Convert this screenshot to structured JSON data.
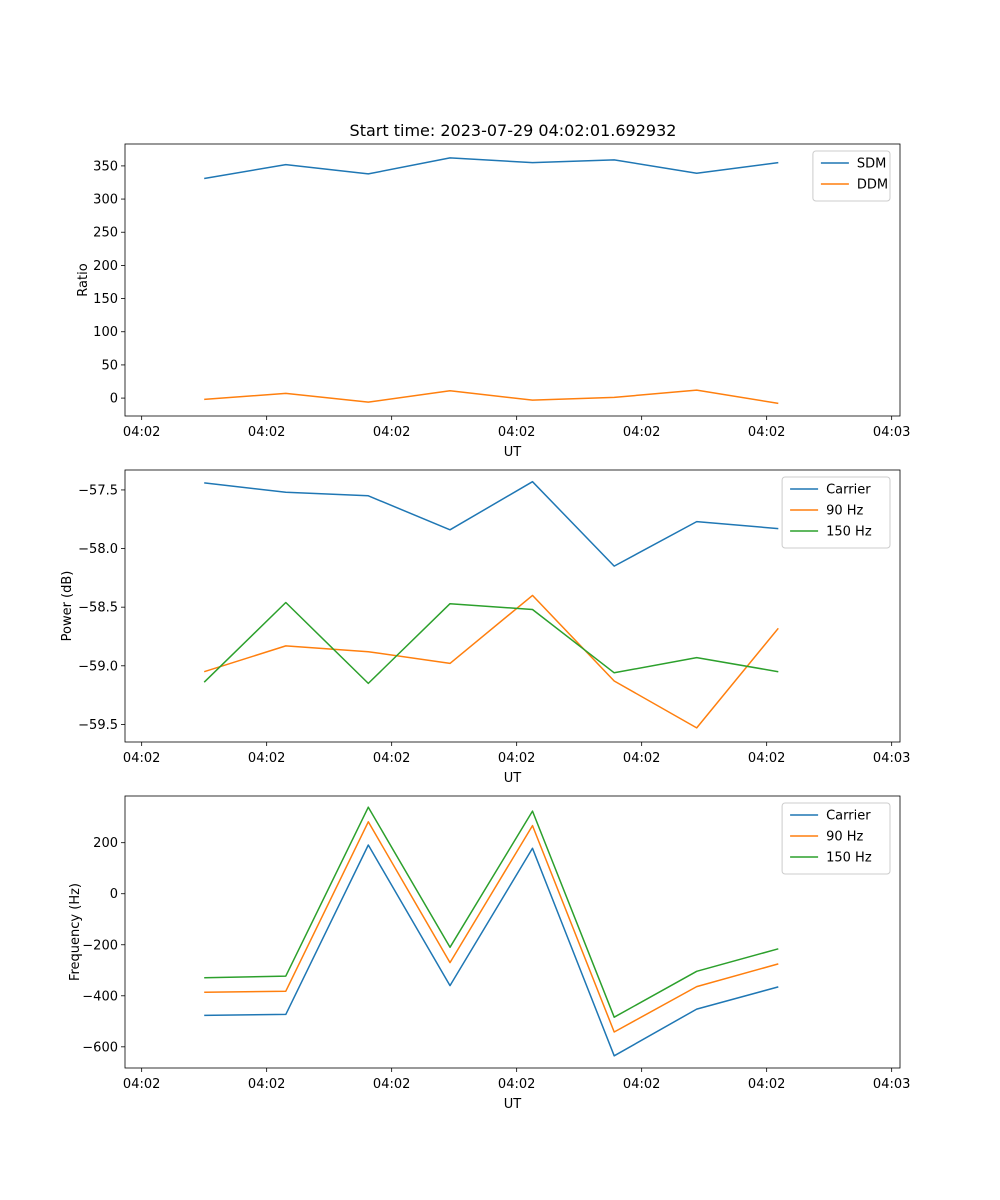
{
  "figure": {
    "title": "Start time: 2023-07-29 04:02:01.692932"
  },
  "colors": {
    "blue": "#1f77b4",
    "orange": "#ff7f0e",
    "green": "#2ca02c"
  },
  "chart_data": [
    {
      "type": "line",
      "title": "Start time: 2023-07-29 04:02:01.692932",
      "xlabel": "UT",
      "ylabel": "Ratio",
      "xlim": [
        -0.2,
        9.1
      ],
      "x_ticks": [
        0,
        1.5,
        3,
        4.5,
        6,
        7.5,
        9
      ],
      "x_tick_labels": [
        "04:02",
        "04:02",
        "04:02",
        "04:02",
        "04:02",
        "04:02",
        "04:03"
      ],
      "ylim": [
        -27,
        383
      ],
      "y_ticks": [
        0,
        50,
        100,
        150,
        200,
        250,
        300,
        350
      ],
      "y_tick_labels": [
        "0",
        "50",
        "100",
        "150",
        "200",
        "250",
        "300",
        "350"
      ],
      "legend": "top-right",
      "x": [
        0.75,
        1.73,
        2.72,
        3.7,
        4.69,
        5.67,
        6.66,
        7.64
      ],
      "series": [
        {
          "name": "SDM",
          "color": "#1f77b4",
          "values": [
            331,
            352,
            338,
            362,
            355,
            359,
            339,
            355
          ]
        },
        {
          "name": "DDM",
          "color": "#ff7f0e",
          "values": [
            -2,
            7,
            -6,
            11,
            -3,
            1,
            12,
            -8
          ]
        }
      ]
    },
    {
      "type": "line",
      "xlabel": "UT",
      "ylabel": "Power (dB)",
      "xlim": [
        -0.2,
        9.1
      ],
      "x_ticks": [
        0,
        1.5,
        3,
        4.5,
        6,
        7.5,
        9
      ],
      "x_tick_labels": [
        "04:02",
        "04:02",
        "04:02",
        "04:02",
        "04:02",
        "04:02",
        "04:03"
      ],
      "ylim": [
        -59.65,
        -57.33
      ],
      "y_ticks": [
        -59.5,
        -59.0,
        -58.5,
        -58.0,
        -57.5
      ],
      "y_tick_labels": [
        "−59.5",
        "−59.0",
        "−58.5",
        "−58.0",
        "−57.5"
      ],
      "legend": "top-right",
      "x": [
        0.75,
        1.73,
        2.72,
        3.7,
        4.69,
        5.67,
        6.66,
        7.64
      ],
      "series": [
        {
          "name": "Carrier",
          "color": "#1f77b4",
          "values": [
            -57.44,
            -57.52,
            -57.55,
            -57.84,
            -57.43,
            -58.15,
            -57.77,
            -57.83
          ]
        },
        {
          "name": "90 Hz",
          "color": "#ff7f0e",
          "values": [
            -59.05,
            -58.83,
            -58.88,
            -58.98,
            -58.4,
            -59.13,
            -59.53,
            -58.68
          ]
        },
        {
          "name": "150 Hz",
          "color": "#2ca02c",
          "values": [
            -59.14,
            -58.46,
            -59.15,
            -58.47,
            -58.52,
            -59.06,
            -58.93,
            -59.05
          ]
        }
      ]
    },
    {
      "type": "line",
      "xlabel": "UT",
      "ylabel": "Frequency (Hz)",
      "xlim": [
        -0.2,
        9.1
      ],
      "x_ticks": [
        0,
        1.5,
        3,
        4.5,
        6,
        7.5,
        9
      ],
      "x_tick_labels": [
        "04:02",
        "04:02",
        "04:02",
        "04:02",
        "04:02",
        "04:02",
        "04:03"
      ],
      "ylim": [
        -683,
        383
      ],
      "y_ticks": [
        -600,
        -400,
        -200,
        0,
        200
      ],
      "y_tick_labels": [
        "−600",
        "−400",
        "−200",
        "0",
        "200"
      ],
      "legend": "top-right",
      "x": [
        0.75,
        1.73,
        2.72,
        3.7,
        4.69,
        5.67,
        6.66,
        7.64
      ],
      "series": [
        {
          "name": "Carrier",
          "color": "#1f77b4",
          "values": [
            -477,
            -473,
            191,
            -360,
            178,
            -635,
            -452,
            -365
          ]
        },
        {
          "name": "90 Hz",
          "color": "#ff7f0e",
          "values": [
            -386,
            -382,
            282,
            -270,
            267,
            -542,
            -364,
            -275
          ]
        },
        {
          "name": "150 Hz",
          "color": "#2ca02c",
          "values": [
            -329,
            -323,
            339,
            -210,
            324,
            -484,
            -304,
            -216
          ]
        }
      ]
    }
  ]
}
